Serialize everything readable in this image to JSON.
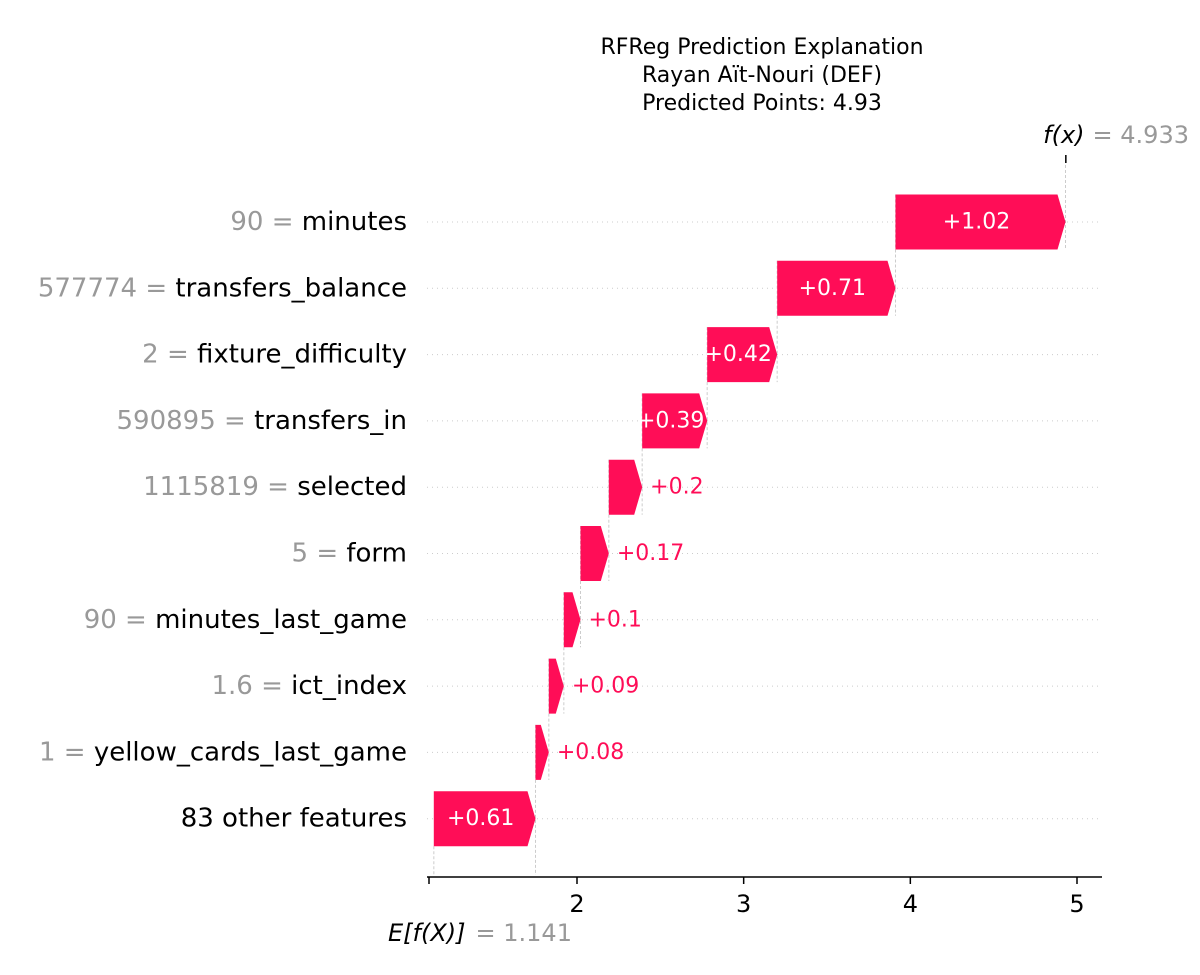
{
  "title": {
    "line1": "RFReg Prediction Explanation",
    "line2": "Rayan Aït-Nouri (DEF)",
    "line3": "Predicted Points: 4.93"
  },
  "annotations": {
    "fx_label": "f(x)",
    "fx_value": "= 4.933",
    "ex_label": "E[f(X)]",
    "ex_value": "= 1.141"
  },
  "colors": {
    "positive": "#ff0d57",
    "feature_value": "#999999",
    "guide": "#cccccc"
  },
  "chart_data": {
    "type": "waterfall",
    "base_value": 1.141,
    "prediction": 4.933,
    "xlim": [
      1.1,
      5.15
    ],
    "xticks": [
      1,
      2,
      3,
      4,
      5
    ],
    "features": [
      {
        "value_text": "90",
        "name": "minutes",
        "contribution": 1.02,
        "label": "+1.02"
      },
      {
        "value_text": "577774",
        "name": "transfers_balance",
        "contribution": 0.71,
        "label": "+0.71"
      },
      {
        "value_text": "2",
        "name": "fixture_difficulty",
        "contribution": 0.42,
        "label": "+0.42"
      },
      {
        "value_text": "590895",
        "name": "transfers_in",
        "contribution": 0.39,
        "label": "+0.39"
      },
      {
        "value_text": "1115819",
        "name": "selected",
        "contribution": 0.2,
        "label": "+0.2"
      },
      {
        "value_text": "5",
        "name": "form",
        "contribution": 0.17,
        "label": "+0.17"
      },
      {
        "value_text": "90",
        "name": "minutes_last_game",
        "contribution": 0.1,
        "label": "+0.1"
      },
      {
        "value_text": "1.6",
        "name": "ict_index",
        "contribution": 0.09,
        "label": "+0.09"
      },
      {
        "value_text": "1",
        "name": "yellow_cards_last_game",
        "contribution": 0.08,
        "label": "+0.08"
      },
      {
        "value_text": "",
        "name": "83 other features",
        "contribution": 0.61,
        "label": "+0.61"
      }
    ]
  }
}
